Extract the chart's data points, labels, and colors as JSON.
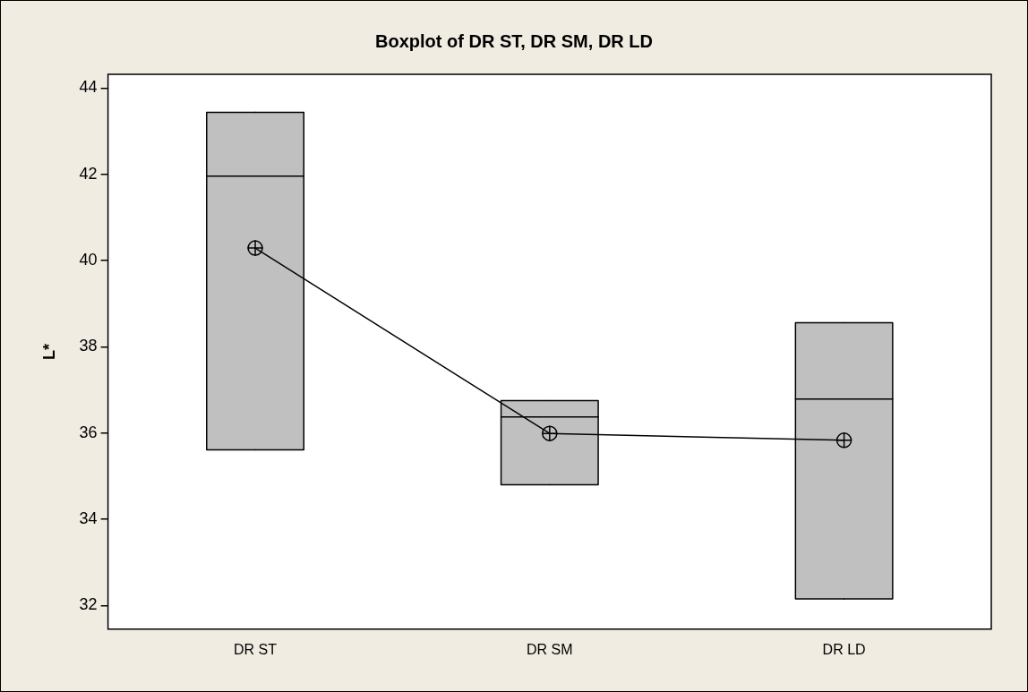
{
  "chart_data": {
    "type": "box",
    "title": "Boxplot of DR ST, DR SM, DR LD",
    "ylabel": "L*",
    "categories": [
      "DR ST",
      "DR SM",
      "DR LD"
    ],
    "ylim": [
      31.45,
      44.32
    ],
    "yticks": [
      32,
      34,
      36,
      38,
      40,
      42,
      44
    ],
    "grid": false,
    "legend": false,
    "marker": "circle",
    "series": [
      {
        "color": "#c0c0c0",
        "boxes": [
          {
            "low": 35.61,
            "q1": 35.61,
            "median": 41.96,
            "q3": 43.44,
            "high": 43.44
          },
          {
            "low": 34.8,
            "q1": 34.8,
            "median": 36.37,
            "q3": 36.75,
            "high": 36.75
          },
          {
            "low": 32.15,
            "q1": 32.15,
            "median": 36.79,
            "q3": 38.56,
            "high": 38.56
          }
        ]
      },
      {
        "type": "line",
        "color": "#000000",
        "values": [
          40.29,
          35.99,
          35.83
        ]
      }
    ]
  }
}
